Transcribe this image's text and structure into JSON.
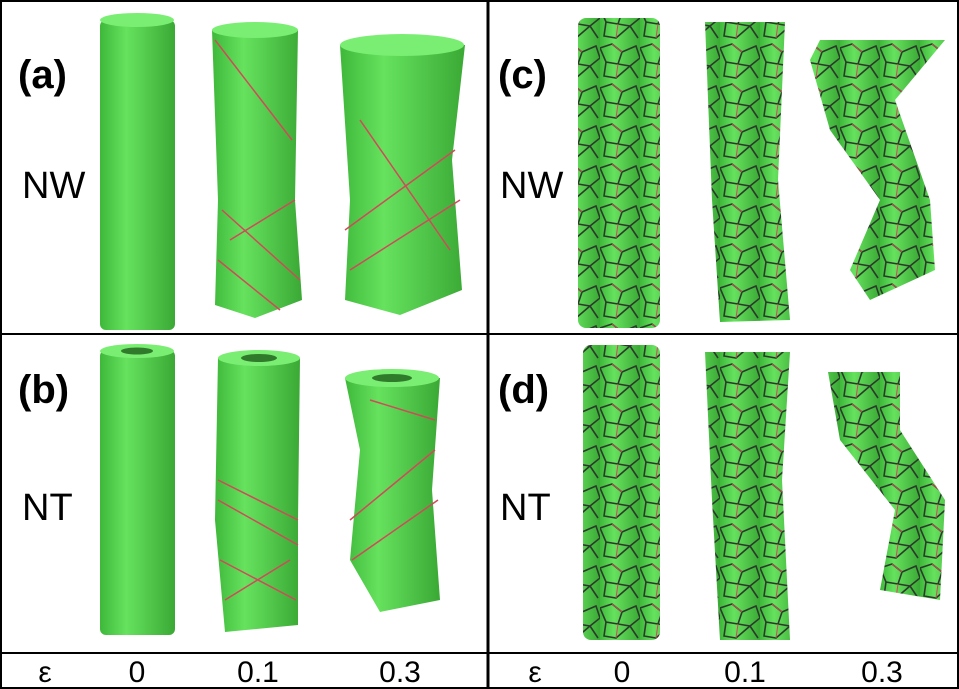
{
  "panels": [
    {
      "label": "(a)",
      "material": "NW"
    },
    {
      "label": "(b)",
      "material": "NT"
    },
    {
      "label": "(c)",
      "material": "NW"
    },
    {
      "label": "(d)",
      "material": "NT"
    }
  ],
  "strain_rows": [
    {
      "symbol": "ε",
      "values": [
        0,
        0.1,
        0.3
      ]
    },
    {
      "symbol": "ε",
      "values": [
        0,
        0.1,
        0.3
      ]
    }
  ]
}
